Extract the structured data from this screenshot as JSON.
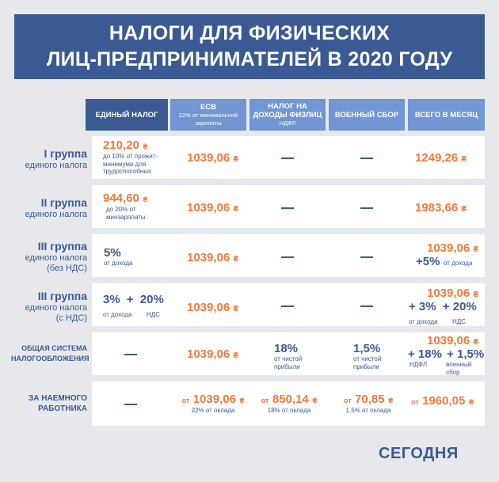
{
  "title": {
    "line1": "НАЛОГИ ДЛЯ ФИЗИЧЕСКИХ",
    "line2": "ЛИЦ-ПРЕДПРИНИМАТЕЛЕЙ В 2020 ГОДУ"
  },
  "headers": {
    "single_tax": "ЕДИНЫЙ НАЛОГ",
    "esv": "ЕСВ",
    "esv_sub": "22% от минимальной зарплаты",
    "pit_line1": "НАЛОГ НА",
    "pit_line2": "ДОХОДЫ ФИЗЛИЦ",
    "pit_sub": "НДФЛ",
    "military": "ВОЕННЫЙ СБОР",
    "total": "ВСЕГО В МЕСЯЦ"
  },
  "currency": "₴",
  "dash": "—",
  "rows": {
    "g1": {
      "label_big": "I группа",
      "label_sub": "единого налога",
      "single_value": "210,20",
      "single_note1": "до 10% от прожит-",
      "single_note2": "минимума для",
      "single_note3": "трудоспособных",
      "esv": "1039,06",
      "total": "1249,26"
    },
    "g2": {
      "label_big": "II группа",
      "label_sub": "единого налога",
      "single_value": "944,60",
      "single_note1": "до 20% от",
      "single_note2": "минзарплаты",
      "esv": "1039,06",
      "total": "1983,66"
    },
    "g3": {
      "label_big": "III группа",
      "label_sub": "единого налога",
      "label_sub2": "(без НДС)",
      "single_value": "5%",
      "single_note1": "от дохода",
      "esv": "1039,06",
      "total_line1": "1039,06",
      "total_line2": "+5%",
      "total_note": "от дохода"
    },
    "g3vat": {
      "label_big": "III группа",
      "label_sub": "единого налога",
      "label_sub2": "(с НДС)",
      "single_a": "3%",
      "plus": "+",
      "single_b": "20%",
      "note_a": "от дохода",
      "note_b": "НДС",
      "esv": "1039,06",
      "total_line1": "1039,06",
      "total_a": "+ 3%",
      "total_b": "+ 20%",
      "total_note_a": "от дохода",
      "total_note_b": "НДС"
    },
    "general": {
      "label1": "ОБЩАЯ СИСТЕМА",
      "label2": "НАЛОГООБЛОЖЕНИЯ",
      "esv": "1039,06",
      "pit": "18%",
      "pit_note1": "от чистой",
      "pit_note2": "прибыли",
      "mil": "1,5%",
      "mil_note1": "от чистой",
      "mil_note2": "прибыли",
      "total_line1": "1039,06",
      "total_a": "+ 18%",
      "total_b": "+ 1,5%",
      "total_note_a": "НДФЛ",
      "total_note_b1": "военный",
      "total_note_b2": "сбор"
    },
    "employee": {
      "label1": "ЗА НАЕМНОГО",
      "label2": "РАБОТНИКА",
      "from": "от",
      "esv": "1039,06",
      "esv_note": "22% от оклада",
      "pit": "850,14",
      "pit_note": "18% от оклада",
      "mil": "70,85",
      "mil_note": "1,5% от оклада",
      "total": "1960,05"
    }
  },
  "logo": "СЕГОДНЯ",
  "colors": {
    "navy": "#3b5a93",
    "header_blue": "#7295d3",
    "orange": "#f07a3c",
    "background": "#e6e8ec"
  }
}
